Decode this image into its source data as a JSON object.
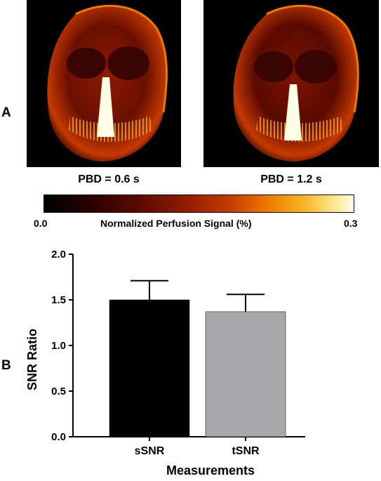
{
  "panel_a": {
    "letter": "A",
    "images": [
      {
        "caption": "PBD = 0.6 s"
      },
      {
        "caption": "PBD = 1.2 s"
      }
    ],
    "colorbar": {
      "min_label": "0.0",
      "max_label": "0.3",
      "title": "Normalized Perfusion Signal (%)",
      "colors": [
        "#000000",
        "#5a0a00",
        "#c53a00",
        "#f7b525",
        "#fffde6"
      ]
    }
  },
  "panel_b": {
    "letter": "B"
  },
  "chart_data": {
    "type": "bar",
    "categories": [
      "sSNR",
      "tSNR"
    ],
    "values": [
      1.5,
      1.37
    ],
    "error_upper": [
      0.21,
      0.19
    ],
    "colors": [
      "#000000",
      "#a8a8aa"
    ],
    "xlabel": "Measurements",
    "ylabel": "SNR Ratio",
    "ylim": [
      0,
      2.0
    ],
    "yticks": [
      "0.0",
      "0.5",
      "1.0",
      "1.5",
      "2.0"
    ],
    "grid": false,
    "legend": "none"
  }
}
